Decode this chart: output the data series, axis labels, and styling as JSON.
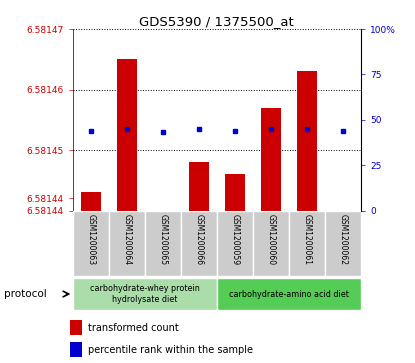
{
  "title": "GDS5390 / 1375500_at",
  "samples": [
    "GSM1200063",
    "GSM1200064",
    "GSM1200065",
    "GSM1200066",
    "GSM1200059",
    "GSM1200060",
    "GSM1200061",
    "GSM1200062"
  ],
  "bar_values": [
    6.581443,
    6.581465,
    6.581438,
    6.581448,
    6.581446,
    6.581457,
    6.581463,
    6.581437
  ],
  "percentile_values": [
    44,
    45,
    43,
    45,
    44,
    45,
    45,
    44
  ],
  "ylim_left": [
    6.58144,
    6.58147
  ],
  "ylim_right": [
    0,
    100
  ],
  "bar_color": "#cc0000",
  "dot_color": "#0000cc",
  "bar_bottom": 6.58144,
  "groups": [
    {
      "label": "carbohydrate-whey protein\nhydrolysate diet",
      "indices": [
        0,
        1,
        2,
        3
      ],
      "color": "#aaddaa"
    },
    {
      "label": "carbohydrate-amino acid diet",
      "indices": [
        4,
        5,
        6,
        7
      ],
      "color": "#55cc55"
    }
  ],
  "protocol_label": "protocol",
  "ytick_positions_left": [
    6.58144,
    6.581442,
    6.58145,
    6.58146,
    6.58147
  ],
  "ytick_labels_left": [
    "6.58144",
    "6.58144",
    "6.58145",
    "6.58146",
    "6.58147"
  ],
  "ytick_positions_right": [
    0,
    25,
    50,
    75,
    100
  ],
  "ytick_labels_right": [
    "0",
    "25",
    "50",
    "75",
    "100%"
  ],
  "grid_yticks": [
    6.58144,
    6.58145,
    6.58146,
    6.58147
  ],
  "bg_color": "#ffffff",
  "tick_label_color_left": "#cc0000",
  "tick_label_color_right": "#0000cc",
  "bar_width": 0.55,
  "sample_bg_color": "#cccccc",
  "cell_edge_color": "#ffffff"
}
